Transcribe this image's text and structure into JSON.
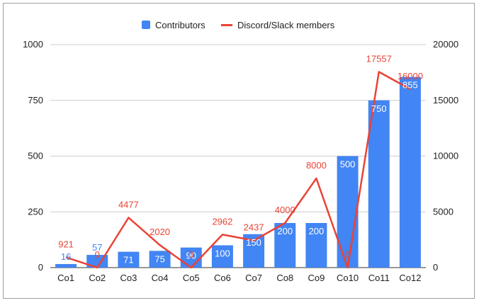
{
  "chart_data": {
    "type": "bar",
    "categories": [
      "Co1",
      "Co2",
      "Co3",
      "Co4",
      "Co5",
      "Co6",
      "Co7",
      "Co8",
      "Co9",
      "Co10",
      "Co11",
      "Co12"
    ],
    "series": [
      {
        "name": "Contributors",
        "chart_type": "bar",
        "axis": "left",
        "color": "#4285f4",
        "values": [
          16,
          57,
          71,
          75,
          90,
          100,
          150,
          200,
          200,
          500,
          750,
          855
        ]
      },
      {
        "name": "Discord/Slack members",
        "chart_type": "line",
        "axis": "right",
        "color": "#ea4335",
        "values": [
          921,
          0,
          4477,
          2020,
          0,
          2962,
          2437,
          4000,
          8000,
          0,
          17557,
          16000
        ]
      }
    ],
    "left_axis": {
      "min": 0,
      "max": 1000,
      "ticks": [
        0,
        250,
        500,
        750,
        1000
      ]
    },
    "right_axis": {
      "min": 0,
      "max": 20000,
      "ticks": [
        0,
        5000,
        10000,
        15000,
        20000
      ]
    },
    "legend_position": "top",
    "grid": true
  }
}
